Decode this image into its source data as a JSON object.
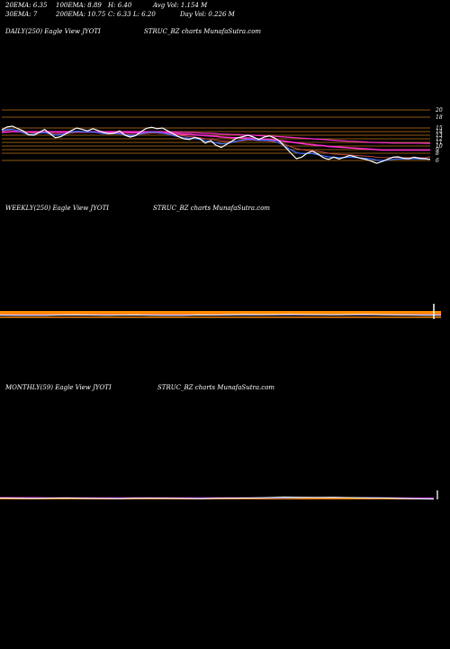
{
  "header": {
    "ema20": "20EMA: 6.35",
    "ema100": "100EMA: 8.89",
    "high": "H: 6.40",
    "avgvol": "Avg Vol: 1.154  M",
    "ema30": "30EMA: 7",
    "ema200": "200EMA: 10.75",
    "close": "C: 6.33",
    "low": "L: 6.20",
    "dayvol": "Day Vol: 0.226  M"
  },
  "panels": {
    "daily": {
      "title": "DAILY(250) Eagle   View  JYOTI",
      "credit": "STRUC_BZ charts MunafaSutra.com"
    },
    "weekly": {
      "title": "WEEKLY(250) Eagle   View  JYOTI",
      "credit": "STRUC_BZ charts MunafaSutra.com"
    },
    "monthly": {
      "title": "MONTHLY(59) Eagle   View  JYOTI",
      "credit": "STRUC_BZ charts MunafaSutra.com"
    }
  },
  "colors": {
    "background": "#000000",
    "price": "#ffffff",
    "ema_fast": "#3a6bff",
    "ema_slow": "#ff2fd0",
    "ema_mid": "#d05050",
    "levels": "#e08a1a",
    "weekly_band": "#ff8c00"
  },
  "chart_data": [
    {
      "type": "line",
      "panel": "daily",
      "ylim": [
        5,
        21
      ],
      "y_ticks": [
        20,
        18,
        15,
        14,
        13,
        12,
        11,
        10,
        9,
        8,
        6
      ],
      "horizontal_levels": [
        20,
        18,
        15,
        14,
        13,
        12,
        11,
        10,
        9,
        8,
        6
      ],
      "series": [
        {
          "values": [
            14.5,
            15.3,
            15.5,
            14.8,
            14.2,
            13.1,
            13.0,
            13.8,
            14.6,
            13.4,
            12.3,
            12.6,
            13.4,
            14.3,
            15.0,
            14.6,
            14.2,
            14.8,
            14.3,
            13.8,
            13.4,
            13.6,
            14.2,
            13.0,
            12.5,
            12.9,
            14.0,
            14.9,
            15.2,
            14.8,
            15.0,
            14.2,
            13.4,
            12.6,
            12.0,
            11.8,
            12.4,
            12.0,
            10.8,
            11.5,
            10.2,
            9.6,
            10.5,
            11.4,
            12.3,
            12.6,
            13.0,
            12.5,
            11.8,
            12.5,
            12.8,
            12.2,
            11.2,
            9.6,
            8.0,
            6.5,
            6.9,
            8.0,
            8.6,
            7.8,
            6.8,
            6.3,
            6.9,
            6.4,
            6.9,
            7.4,
            7.0,
            6.6,
            6.3,
            5.8,
            5.2,
            5.7,
            6.3,
            6.9,
            7.0,
            6.6,
            6.5,
            6.9,
            6.6,
            6.5,
            6.3
          ]
        },
        {
          "values": [
            14.3,
            14.6,
            14.6,
            14.2,
            13.6,
            13.2,
            13.3,
            13.6,
            13.7,
            13.4,
            13.0,
            13.1,
            13.4,
            13.9,
            14.1,
            14.0,
            13.9,
            13.9,
            13.7,
            13.4,
            13.4,
            13.4,
            13.4,
            13.1,
            12.9,
            13.0,
            13.4,
            13.7,
            13.9,
            13.8,
            13.6,
            13.3,
            12.9,
            12.6,
            12.3,
            12.2,
            12.1,
            11.8,
            11.4,
            11.3,
            10.9,
            10.6,
            10.7,
            11.0,
            11.4,
            11.7,
            11.9,
            11.8,
            11.6,
            11.6,
            11.6,
            11.3,
            10.7,
            9.8,
            8.9,
            8.2,
            7.9,
            7.9,
            7.9,
            7.6,
            7.3,
            7.0,
            6.9,
            6.8,
            6.8,
            6.9,
            6.8,
            6.7,
            6.6,
            6.4,
            6.1,
            6.0,
            6.1,
            6.3,
            6.4,
            6.4,
            6.4,
            6.5,
            6.4,
            6.4,
            6.35
          ]
        },
        {
          "values": [
            14.2,
            14.4,
            14.5,
            14.3,
            14.0,
            13.7,
            13.6,
            13.7,
            13.7,
            13.6,
            13.4,
            13.3,
            13.4,
            13.6,
            13.8,
            13.8,
            13.8,
            13.8,
            13.7,
            13.6,
            13.5,
            13.5,
            13.5,
            13.3,
            13.2,
            13.2,
            13.3,
            13.5,
            13.6,
            13.6,
            13.5,
            13.4,
            13.2,
            13.0,
            12.8,
            12.6,
            12.5,
            12.3,
            12.0,
            11.9,
            11.6,
            11.4,
            11.3,
            11.3,
            11.4,
            11.5,
            11.6,
            11.6,
            11.5,
            11.5,
            11.4,
            11.2,
            10.9,
            10.4,
            9.8,
            9.3,
            9.0,
            8.8,
            8.7,
            8.5,
            8.3,
            8.0,
            7.8,
            7.7,
            7.6,
            7.5,
            7.4,
            7.3,
            7.2,
            7.1,
            6.9,
            6.8,
            6.8,
            6.8,
            6.8,
            6.8,
            6.8,
            6.8,
            6.8,
            6.7,
            7.0
          ]
        },
        {
          "values": [
            13.8,
            13.9,
            14.0,
            14.0,
            13.9,
            13.9,
            13.9,
            13.9,
            13.9,
            13.9,
            13.9,
            13.8,
            13.8,
            13.9,
            13.9,
            13.9,
            13.9,
            13.9,
            13.9,
            13.9,
            13.8,
            13.8,
            13.8,
            13.8,
            13.7,
            13.7,
            13.7,
            13.7,
            13.7,
            13.7,
            13.6,
            13.6,
            13.5,
            13.4,
            13.3,
            13.2,
            13.1,
            13.0,
            12.9,
            12.8,
            12.7,
            12.5,
            12.4,
            12.3,
            12.3,
            12.2,
            12.2,
            12.1,
            12.0,
            11.9,
            11.8,
            11.7,
            11.5,
            11.3,
            11.1,
            10.9,
            10.7,
            10.5,
            10.4,
            10.2,
            10.1,
            9.9,
            9.8,
            9.7,
            9.6,
            9.5,
            9.4,
            9.3,
            9.2,
            9.1,
            9.0,
            8.9,
            8.9,
            8.9,
            8.9,
            8.9,
            8.9,
            8.9,
            8.9,
            8.9,
            8.89
          ]
        },
        {
          "values": [
            13.9,
            13.9,
            14.0,
            14.0,
            14.0,
            14.0,
            14.0,
            14.0,
            14.0,
            14.0,
            14.0,
            14.0,
            14.0,
            14.0,
            14.0,
            14.0,
            14.0,
            14.0,
            14.0,
            14.0,
            14.0,
            14.0,
            14.0,
            14.0,
            14.0,
            14.0,
            14.0,
            14.0,
            14.0,
            14.0,
            14.0,
            13.9,
            13.9,
            13.8,
            13.8,
            13.7,
            13.7,
            13.6,
            13.5,
            13.5,
            13.4,
            13.3,
            13.3,
            13.2,
            13.2,
            13.1,
            13.0,
            13.0,
            12.9,
            12.8,
            12.8,
            12.7,
            12.6,
            12.5,
            12.4,
            12.3,
            12.2,
            12.1,
            12.0,
            11.9,
            11.8,
            11.7,
            11.6,
            11.5,
            11.4,
            11.3,
            11.3,
            11.2,
            11.1,
            11.0,
            11.0,
            10.9,
            10.9,
            10.8,
            10.8,
            10.8,
            10.8,
            10.8,
            10.8,
            10.75,
            10.75
          ]
        }
      ]
    },
    {
      "type": "line",
      "panel": "weekly",
      "ylim": [
        0,
        100
      ],
      "series": [
        {
          "values": [
            32,
            30,
            31,
            31,
            33,
            34,
            32,
            31,
            32,
            33,
            31,
            30,
            31,
            33,
            32,
            34,
            36,
            35,
            36,
            37,
            36,
            35,
            34,
            36,
            37,
            35,
            33,
            32,
            31,
            30
          ]
        },
        {
          "values": [
            31,
            31,
            31,
            31,
            32,
            32,
            32,
            32,
            32,
            32,
            32,
            31,
            31,
            32,
            32,
            33,
            33,
            34,
            34,
            35,
            35,
            35,
            35,
            35,
            35,
            35,
            34,
            34,
            33,
            32
          ]
        },
        {
          "values": [
            34,
            34,
            34,
            34,
            34,
            34,
            34,
            34,
            34,
            34,
            34,
            34,
            34,
            34,
            34,
            34,
            34,
            34,
            35,
            35,
            35,
            35,
            35,
            35,
            35,
            35,
            35,
            35,
            35,
            35
          ]
        }
      ]
    },
    {
      "type": "line",
      "panel": "monthly",
      "ylim": [
        0,
        100
      ],
      "series": [
        {
          "values": [
            38,
            36,
            35,
            37,
            38,
            36,
            35,
            34,
            36,
            37,
            36,
            35,
            34,
            36,
            37,
            38,
            40,
            43,
            42,
            41,
            42,
            40,
            39,
            38,
            35,
            33,
            31
          ]
        },
        {
          "values": [
            37,
            37,
            37,
            37,
            37,
            36,
            36,
            36,
            36,
            36,
            36,
            36,
            36,
            36,
            36,
            37,
            38,
            39,
            40,
            40,
            40,
            40,
            39,
            38,
            37,
            35,
            34
          ]
        },
        {
          "values": [
            40,
            40,
            40,
            39,
            39,
            39,
            39,
            39,
            39,
            39,
            39,
            39,
            39,
            39,
            39,
            39,
            39,
            40,
            40,
            40,
            40,
            40,
            40,
            39,
            39,
            38,
            38
          ]
        }
      ]
    }
  ]
}
